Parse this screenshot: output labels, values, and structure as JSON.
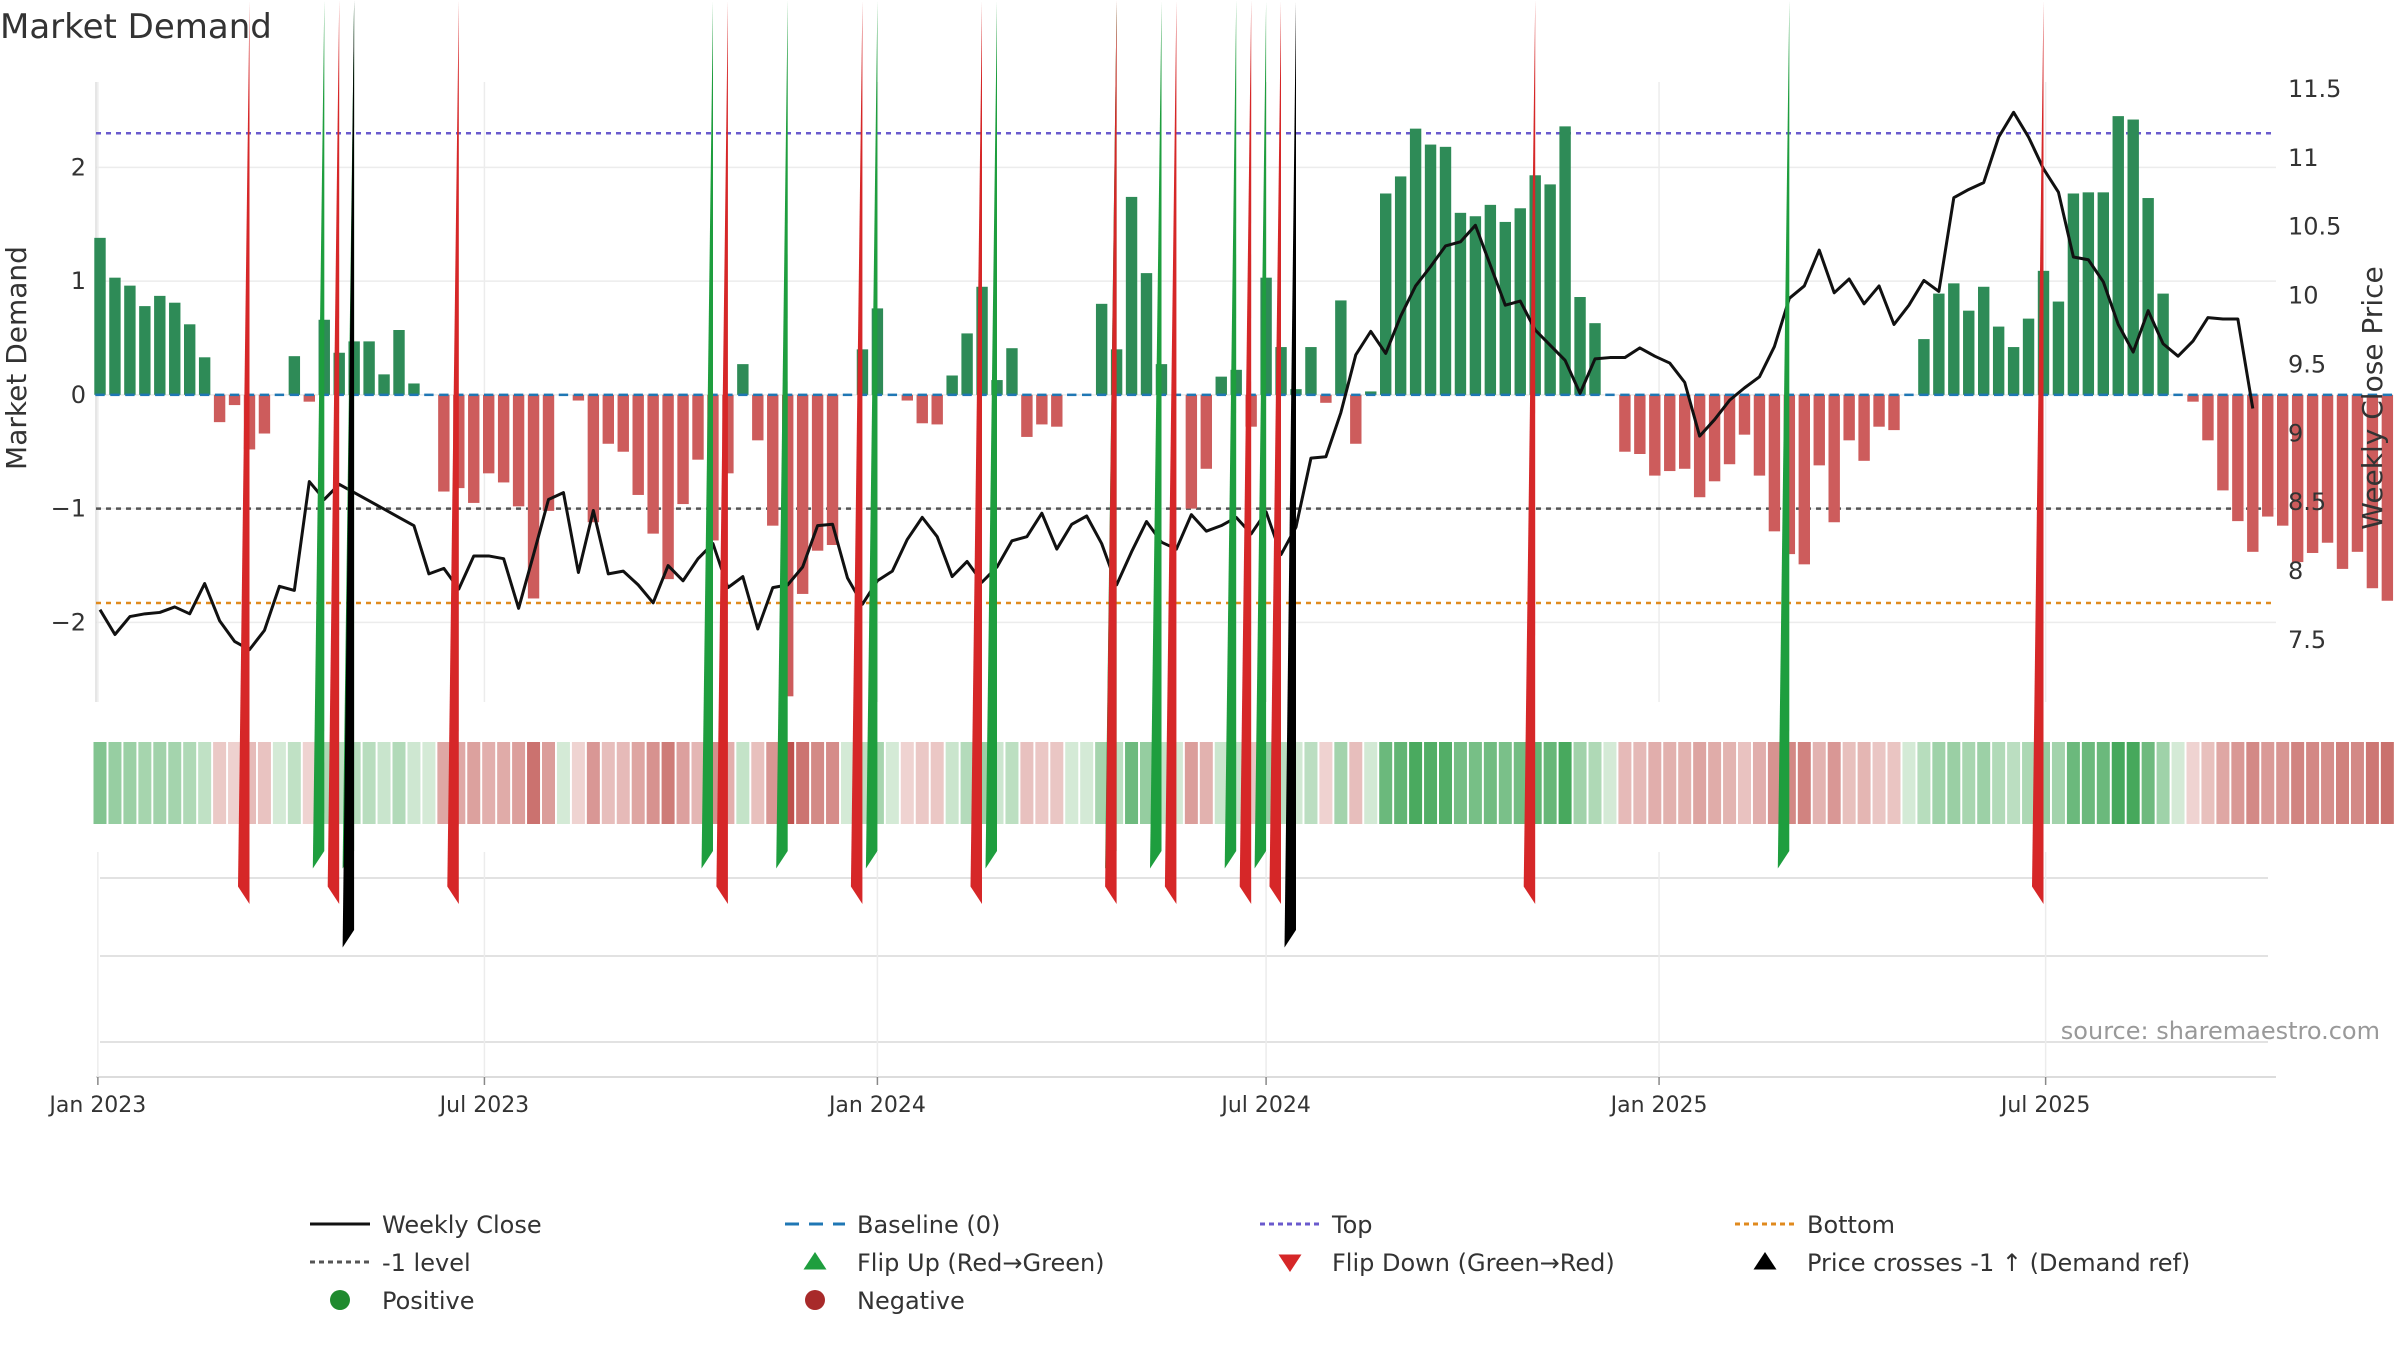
{
  "chart_data": {
    "type": "bar",
    "title": "Market Demand",
    "ylabel": "Market Demand",
    "y2label": "Weekly Close Price",
    "source": "source: sharemaestro.com",
    "ylim": [
      -2.7,
      2.75
    ],
    "y2lim": [
      7.05,
      11.55
    ],
    "y_ticks": [
      {
        "value": 2,
        "label": "2"
      },
      {
        "value": 1,
        "label": "1"
      },
      {
        "value": 0,
        "label": "0"
      },
      {
        "value": -1,
        "label": "−1"
      },
      {
        "value": -2,
        "label": "−2"
      }
    ],
    "y2_ticks": [
      {
        "value": 11.5,
        "label": "11.5"
      },
      {
        "value": 11,
        "label": "11"
      },
      {
        "value": 10.5,
        "label": "10.5"
      },
      {
        "value": 10,
        "label": "10"
      },
      {
        "value": 9.5,
        "label": "9.5"
      },
      {
        "value": 9,
        "label": "9"
      },
      {
        "value": 8.5,
        "label": "8.5"
      },
      {
        "value": 8,
        "label": "8"
      },
      {
        "value": 7.5,
        "label": "7.5"
      }
    ],
    "x_start": "2023-01-02",
    "x_step_days": 7,
    "x_ticks": [
      {
        "date": "2023-01-01",
        "label": "Jan 2023"
      },
      {
        "date": "2023-07-01",
        "label": "Jul 2023"
      },
      {
        "date": "2024-01-01",
        "label": "Jan 2024"
      },
      {
        "date": "2024-07-01",
        "label": "Jul 2024"
      },
      {
        "date": "2025-01-01",
        "label": "Jan 2025"
      },
      {
        "date": "2025-07-01",
        "label": "Jul 2025"
      }
    ],
    "grid": true,
    "reference_lines": {
      "top": 2.3,
      "bottom": -1.83,
      "level": -1,
      "baseline": 0
    },
    "colors": {
      "positive": "#2e8b57",
      "negative": "#cd5c5c",
      "weekly_close": "#111111",
      "baseline": "#1f77b4",
      "top": "#6a5acd",
      "bottom": "#e08a1e",
      "level": "#555555",
      "flip_up": "#1e9e3e",
      "flip_down": "#d62728",
      "cross": "#000000"
    },
    "demand": [
      1.38,
      1.03,
      0.96,
      0.78,
      0.87,
      0.81,
      0.62,
      0.33,
      -0.24,
      -0.09,
      -0.48,
      -0.34,
      0.0,
      0.34,
      -0.06,
      0.66,
      0.37,
      0.47,
      0.47,
      0.18,
      0.57,
      0.1,
      0.0,
      -0.85,
      -0.82,
      -0.95,
      -0.69,
      -0.77,
      -0.98,
      -1.79,
      -1.02,
      0.0,
      -0.05,
      -1.12,
      -0.43,
      -0.5,
      -0.88,
      -1.22,
      -1.62,
      -0.96,
      -0.57,
      -1.28,
      -0.69,
      0.27,
      -0.4,
      -1.15,
      -2.65,
      -1.75,
      -1.37,
      -1.32,
      0.0,
      0.4,
      0.76,
      0.0,
      -0.05,
      -0.25,
      -0.26,
      0.17,
      0.54,
      0.95,
      0.13,
      0.41,
      -0.37,
      -0.26,
      -0.28,
      0.0,
      0.0,
      0.8,
      0.4,
      1.74,
      1.07,
      0.27,
      0.0,
      -1.0,
      -0.65,
      0.16,
      0.22,
      -0.28,
      1.03,
      0.42,
      0.05,
      0.42,
      -0.07,
      0.83,
      -0.43,
      0.03,
      1.77,
      1.92,
      2.34,
      2.2,
      2.18,
      1.6,
      1.57,
      1.67,
      1.52,
      1.64,
      1.93,
      1.85,
      2.36,
      0.86,
      0.63,
      0.0,
      -0.5,
      -0.52,
      -0.71,
      -0.67,
      -0.65,
      -0.9,
      -0.76,
      -0.61,
      -0.35,
      -0.71,
      -1.2,
      -1.4,
      -1.49,
      -0.62,
      -1.12,
      -0.4,
      -0.58,
      -0.28,
      -0.31,
      0.0,
      0.49,
      0.89,
      0.98,
      0.74,
      0.95,
      0.6,
      0.42,
      0.67,
      1.09,
      0.82,
      1.77,
      1.78,
      1.78,
      2.45,
      2.42,
      1.73,
      0.89,
      0.0,
      -0.06,
      -0.4,
      -0.84,
      -1.11,
      -1.38,
      -1.07,
      -1.15,
      -1.47,
      -1.39,
      -1.3,
      -1.53,
      -1.38,
      -1.7,
      -1.81
    ],
    "close": [
      7.72,
      7.54,
      7.67,
      7.69,
      7.7,
      7.74,
      7.69,
      7.91,
      7.64,
      7.49,
      7.43,
      7.57,
      7.89,
      7.86,
      8.65,
      8.52,
      8.63,
      8.57,
      8.51,
      8.45,
      8.39,
      8.33,
      7.98,
      8.02,
      7.87,
      8.11,
      8.11,
      8.09,
      7.73,
      8.12,
      8.52,
      8.57,
      7.99,
      8.44,
      7.98,
      8.0,
      7.9,
      7.77,
      8.04,
      7.93,
      8.09,
      8.2,
      7.88,
      7.96,
      7.58,
      7.88,
      7.9,
      8.03,
      8.33,
      8.34,
      7.95,
      7.76,
      7.93,
      8.0,
      8.23,
      8.39,
      8.25,
      7.96,
      8.07,
      7.92,
      8.03,
      8.22,
      8.25,
      8.42,
      8.16,
      8.34,
      8.4,
      8.2,
      7.9,
      8.14,
      8.36,
      8.21,
      8.16,
      8.41,
      8.29,
      8.33,
      8.39,
      8.27,
      8.43,
      8.12,
      8.32,
      8.82,
      8.83,
      9.15,
      9.57,
      9.74,
      9.58,
      9.85,
      10.07,
      10.21,
      10.36,
      10.39,
      10.51,
      10.22,
      9.93,
      9.96,
      9.75,
      9.64,
      9.53,
      9.29,
      9.54,
      9.55,
      9.55,
      9.62,
      9.56,
      9.51,
      9.37,
      8.98,
      9.1,
      9.24,
      9.33,
      9.41,
      9.63,
      9.98,
      10.07,
      10.33,
      10.02,
      10.12,
      9.94,
      10.07,
      9.79,
      9.93,
      10.11,
      10.03,
      10.71,
      10.77,
      10.82,
      11.15,
      11.33,
      11.15,
      10.92,
      10.75,
      10.28,
      10.26,
      10.1,
      9.79,
      9.59,
      9.89,
      9.65,
      9.56,
      9.67,
      9.84,
      9.83,
      9.83,
      9.18
    ],
    "flip_up_dates": [
      "2023-04-17",
      "2023-05-01",
      "2023-10-16",
      "2023-11-20",
      "2024-01-01",
      "2024-02-26",
      "2024-04-22",
      "2024-05-13",
      "2024-06-17",
      "2024-07-01",
      "2025-03-03"
    ],
    "flip_down_dates": [
      "2023-03-13",
      "2023-04-24",
      "2023-06-19",
      "2023-10-23",
      "2023-12-25",
      "2024-02-19",
      "2024-04-22",
      "2024-05-20",
      "2024-06-24",
      "2024-07-08",
      "2024-11-04",
      "2025-06-30"
    ],
    "cross_dates": [
      "2023-05-01",
      "2024-07-15"
    ],
    "legend_position": "bottom",
    "legend": [
      {
        "key": "weekly-close",
        "label": "Weekly Close"
      },
      {
        "key": "baseline",
        "label": "Baseline (0)"
      },
      {
        "key": "top",
        "label": "Top"
      },
      {
        "key": "bottom",
        "label": "Bottom"
      },
      {
        "key": "level",
        "label": "-1 level"
      },
      {
        "key": "flip-up",
        "label": "Flip Up (Red→Green)"
      },
      {
        "key": "flip-down",
        "label": "Flip Down (Green→Red)"
      },
      {
        "key": "cross",
        "label": "Price crosses -1 ↑ (Demand ref)"
      },
      {
        "key": "positive",
        "label": "Positive"
      },
      {
        "key": "negative",
        "label": "Negative"
      }
    ]
  }
}
